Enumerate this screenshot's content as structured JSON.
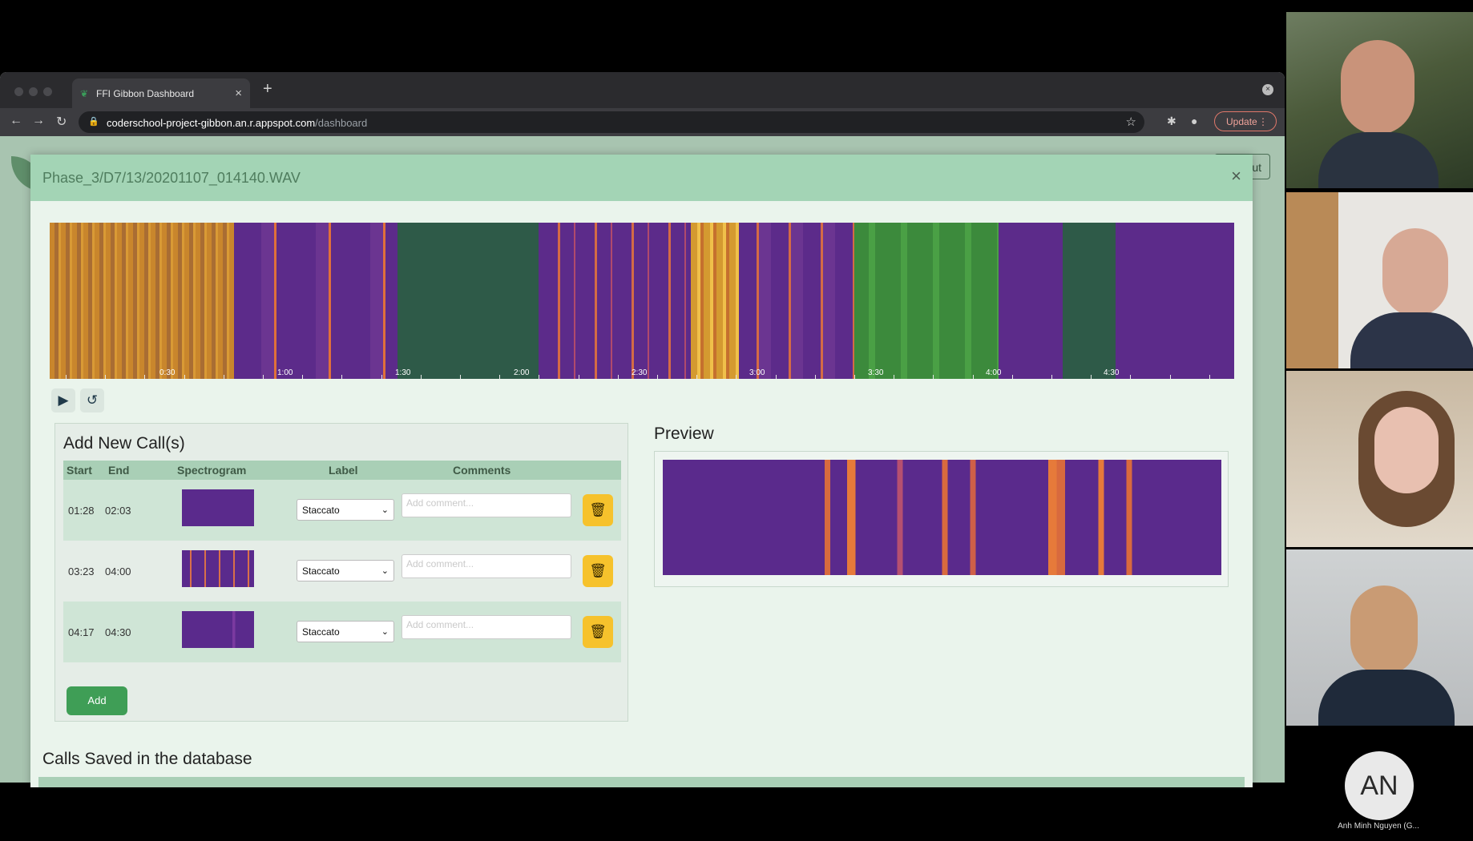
{
  "browser": {
    "tab_title": "FFI Gibbon Dashboard",
    "url_host": "coderschool-project-gibbon.an.r.appspot.com",
    "url_path": "/dashboard",
    "update_label": "Update"
  },
  "page": {
    "logout_partial": "ut"
  },
  "modal": {
    "title": "Phase_3/D7/13/20201107_014140.WAV",
    "close": "×",
    "spectrogram_ticks": [
      "0:30",
      "1:00",
      "1:30",
      "2:00",
      "2:30",
      "3:00",
      "3:30",
      "4:00",
      "4:30"
    ],
    "add_panel": {
      "title": "Add New Call(s)",
      "headers": {
        "start": "Start",
        "end": "End",
        "spectrogram": "Spectrogram",
        "label": "Label",
        "comments": "Comments"
      },
      "rows": [
        {
          "start": "01:28",
          "end": "02:03",
          "label": "Staccato",
          "comment_placeholder": "Add comment..."
        },
        {
          "start": "03:23",
          "end": "04:00",
          "label": "Staccato",
          "comment_placeholder": "Add comment..."
        },
        {
          "start": "04:17",
          "end": "04:30",
          "label": "Staccato",
          "comment_placeholder": "Add comment..."
        }
      ],
      "add_label": "Add"
    },
    "preview_title": "Preview",
    "saved_title": "Calls Saved in the database"
  },
  "call": {
    "initials": "AN",
    "name": "Anh Minh Nguyen (G..."
  },
  "icons": [
    "play-icon",
    "replay-icon",
    "trash-icon",
    "lock-icon",
    "star-icon",
    "close-icon"
  ]
}
